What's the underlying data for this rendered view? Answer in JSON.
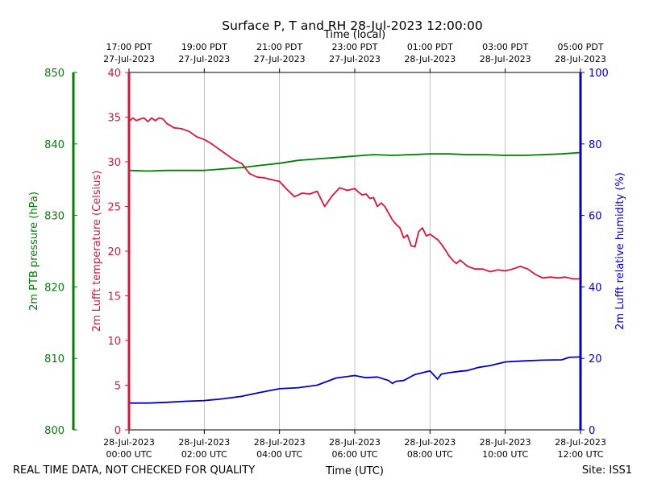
{
  "chart_data": {
    "type": "line",
    "title": "Surface P, T and RH 28-Jul-2023 12:00:00",
    "top_axis_label": "Time (local)",
    "bottom_axis_label": "Time (UTC)",
    "footer_left": "REAL TIME DATA, NOT CHECKED FOR QUALITY",
    "footer_right": "Site: ISS1",
    "x_range_hours": [
      0,
      12
    ],
    "grid": "vertical",
    "bottom_ticks": [
      {
        "hour": 0,
        "line1": "28-Jul-2023",
        "line2": "00:00 UTC"
      },
      {
        "hour": 2,
        "line1": "28-Jul-2023",
        "line2": "02:00 UTC"
      },
      {
        "hour": 4,
        "line1": "28-Jul-2023",
        "line2": "04:00 UTC"
      },
      {
        "hour": 6,
        "line1": "28-Jul-2023",
        "line2": "06:00 UTC"
      },
      {
        "hour": 8,
        "line1": "28-Jul-2023",
        "line2": "08:00 UTC"
      },
      {
        "hour": 10,
        "line1": "28-Jul-2023",
        "line2": "10:00 UTC"
      },
      {
        "hour": 12,
        "line1": "28-Jul-2023",
        "line2": "12:00 UTC"
      }
    ],
    "top_ticks": [
      {
        "hour": 0,
        "line1": "17:00 PDT",
        "line2": "27-Jul-2023"
      },
      {
        "hour": 2,
        "line1": "19:00 PDT",
        "line2": "27-Jul-2023"
      },
      {
        "hour": 4,
        "line1": "21:00 PDT",
        "line2": "27-Jul-2023"
      },
      {
        "hour": 6,
        "line1": "23:00 PDT",
        "line2": "27-Jul-2023"
      },
      {
        "hour": 8,
        "line1": "01:00 PDT",
        "line2": "28-Jul-2023"
      },
      {
        "hour": 10,
        "line1": "03:00 PDT",
        "line2": "28-Jul-2023"
      },
      {
        "hour": 12,
        "line1": "05:00 PDT",
        "line2": "28-Jul-2023"
      }
    ],
    "axes": {
      "pressure": {
        "label": "2m PTB pressure (hPa)",
        "range": [
          800,
          850
        ],
        "ticks": [
          800,
          810,
          820,
          830,
          840,
          850
        ],
        "color": "#008000"
      },
      "temperature": {
        "label": "2m Lufft temperature (Celsius)",
        "range": [
          0,
          40
        ],
        "ticks": [
          0,
          5,
          10,
          15,
          20,
          25,
          30,
          35,
          40
        ],
        "color": "#dc143c"
      },
      "humidity": {
        "label": "2m Lufft relative humidity (%)",
        "range": [
          0,
          100
        ],
        "ticks": [
          0,
          20,
          40,
          60,
          80,
          100
        ],
        "color": "#0000cd"
      }
    },
    "series": [
      {
        "axis": "temperature",
        "color": "#dc143c",
        "x": [
          0,
          0.1,
          0.2,
          0.3,
          0.4,
          0.5,
          0.6,
          0.7,
          0.8,
          0.9,
          1.0,
          1.2,
          1.4,
          1.6,
          1.8,
          2.0,
          2.2,
          2.4,
          2.6,
          2.8,
          3.0,
          3.2,
          3.4,
          3.6,
          3.8,
          4.0,
          4.2,
          4.4,
          4.6,
          4.8,
          5.0,
          5.2,
          5.4,
          5.6,
          5.8,
          6.0,
          6.1,
          6.2,
          6.3,
          6.4,
          6.5,
          6.6,
          6.7,
          6.8,
          7.0,
          7.1,
          7.2,
          7.3,
          7.4,
          7.5,
          7.6,
          7.7,
          7.8,
          7.9,
          8.0,
          8.2,
          8.3,
          8.4,
          8.5,
          8.6,
          8.7,
          8.8,
          9.0,
          9.2,
          9.4,
          9.6,
          9.8,
          10.0,
          10.2,
          10.4,
          10.6,
          10.8,
          11.0,
          11.2,
          11.4,
          11.6,
          11.8,
          12.0
        ],
        "y": [
          34.5,
          34.9,
          34.6,
          34.8,
          34.9,
          34.5,
          34.9,
          34.6,
          34.9,
          34.8,
          34.3,
          33.8,
          33.7,
          33.4,
          32.8,
          32.5,
          32.0,
          31.4,
          30.8,
          30.2,
          29.8,
          28.7,
          28.3,
          28.2,
          28.0,
          27.8,
          26.9,
          26.1,
          26.5,
          26.4,
          26.7,
          25.0,
          26.2,
          27.1,
          26.8,
          27.0,
          26.6,
          26.3,
          26.4,
          25.9,
          26.0,
          25.0,
          25.4,
          25.0,
          23.5,
          23.0,
          22.6,
          21.5,
          21.8,
          20.6,
          20.5,
          22.2,
          22.6,
          21.7,
          21.9,
          21.3,
          20.8,
          20.2,
          19.5,
          19.0,
          18.6,
          19.0,
          18.3,
          18.0,
          18.0,
          17.7,
          17.9,
          17.8,
          18.0,
          18.3,
          18.0,
          17.4,
          17.0,
          17.1,
          17.0,
          17.1,
          16.9,
          16.9
        ]
      },
      {
        "axis": "pressure",
        "color": "#008000",
        "x": [
          0,
          0.5,
          1.0,
          1.5,
          2.0,
          2.5,
          3.0,
          3.5,
          4.0,
          4.5,
          5.0,
          5.5,
          6.0,
          6.5,
          7.0,
          7.5,
          8.0,
          8.5,
          9.0,
          9.5,
          10.0,
          10.5,
          11.0,
          11.5,
          12.0
        ],
        "y": [
          836.3,
          836.2,
          836.3,
          836.3,
          836.3,
          836.5,
          836.7,
          837.0,
          837.3,
          837.7,
          837.9,
          838.1,
          838.3,
          838.5,
          838.4,
          838.5,
          838.6,
          838.6,
          838.5,
          838.5,
          838.4,
          838.4,
          838.5,
          838.6,
          838.8
        ]
      },
      {
        "axis": "humidity",
        "color": "#0000cd",
        "x": [
          0,
          0.5,
          1.0,
          1.5,
          2.0,
          2.5,
          3.0,
          3.5,
          4.0,
          4.5,
          5.0,
          5.5,
          6.0,
          6.3,
          6.6,
          6.9,
          7.0,
          7.1,
          7.3,
          7.6,
          7.8,
          8.0,
          8.2,
          8.3,
          8.5,
          8.8,
          9.0,
          9.3,
          9.6,
          10.0,
          10.5,
          11.0,
          11.5,
          11.7,
          12.0
        ],
        "y": [
          7.5,
          7.5,
          7.7,
          8.0,
          8.2,
          8.7,
          9.4,
          10.5,
          11.5,
          11.8,
          12.5,
          14.5,
          15.2,
          14.6,
          14.8,
          13.8,
          13.0,
          13.6,
          13.8,
          15.5,
          16.0,
          16.5,
          14.2,
          15.6,
          16.0,
          16.4,
          16.6,
          17.5,
          18.0,
          19.0,
          19.3,
          19.5,
          19.6,
          20.3,
          20.4
        ]
      }
    ]
  }
}
